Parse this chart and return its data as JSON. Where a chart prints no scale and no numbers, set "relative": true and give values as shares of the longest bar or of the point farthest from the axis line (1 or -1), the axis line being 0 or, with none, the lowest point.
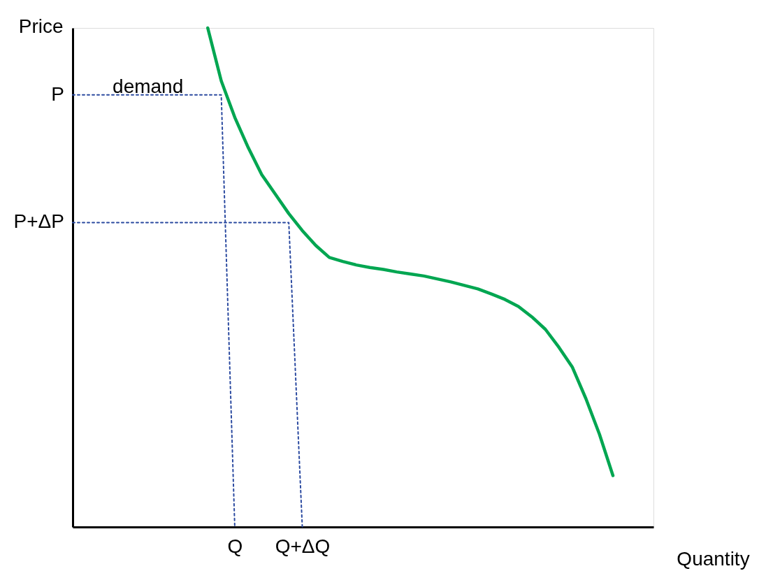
{
  "chart_data": {
    "type": "line",
    "relative": true,
    "xlabel": "Quantity",
    "ylabel": "Price",
    "categories": [
      null,
      null,
      null,
      null,
      null,
      null,
      null,
      null,
      null,
      null,
      null,
      null,
      "Q",
      null,
      null,
      null,
      null,
      "Q+ΔQ",
      null,
      null,
      null,
      null,
      null,
      null,
      null,
      null,
      null,
      null,
      null,
      null,
      null,
      null,
      null,
      null,
      null,
      null,
      null,
      null,
      null,
      null,
      null,
      null,
      null,
      null
    ],
    "grid": false,
    "marker": "none",
    "annotations": [
      "P",
      "P+ΔP"
    ],
    "series": [
      {
        "name": "demand",
        "color": "#00a651",
        "line_style": "solid",
        "values": [
          null,
          null,
          null,
          null,
          null,
          null,
          null,
          null,
          null,
          null,
          1.0,
          0.894,
          0.821,
          0.76,
          0.706,
          0.667,
          0.628,
          0.594,
          0.564,
          0.54,
          0.532,
          0.525,
          0.52,
          0.516,
          0.511,
          0.507,
          0.503,
          0.497,
          0.491,
          0.484,
          0.477,
          0.467,
          0.456,
          0.442,
          0.421,
          0.396,
          0.36,
          0.32,
          0.257,
          0.186,
          0.103,
          null,
          null,
          null
        ]
      },
      {
        "color": "#2b4aa0",
        "line_style": "dotted",
        "values": [
          0.866,
          0.866,
          0.866,
          0.866,
          0.866,
          0.866,
          0.866,
          0.866,
          0.866,
          0.866,
          0.866,
          0.866,
          0,
          null,
          null,
          null,
          null,
          null,
          null,
          null,
          null,
          null,
          null,
          null,
          null,
          null,
          null,
          null,
          null,
          null,
          null,
          null,
          null,
          null,
          null,
          null,
          null,
          null,
          null,
          null,
          null,
          null,
          null,
          null
        ]
      },
      {
        "color": "#2b4aa0",
        "line_style": "dotted",
        "values": [
          0.61,
          0.61,
          0.61,
          0.61,
          0.61,
          0.61,
          0.61,
          0.61,
          0.61,
          0.61,
          0.61,
          0.61,
          0.61,
          0.61,
          0.61,
          0.61,
          0.61,
          0,
          null,
          null,
          null,
          null,
          null,
          null,
          null,
          null,
          null,
          null,
          null,
          null,
          null,
          null,
          null,
          null,
          null,
          null,
          null,
          null,
          null,
          null,
          null,
          null,
          null,
          null
        ]
      }
    ]
  }
}
